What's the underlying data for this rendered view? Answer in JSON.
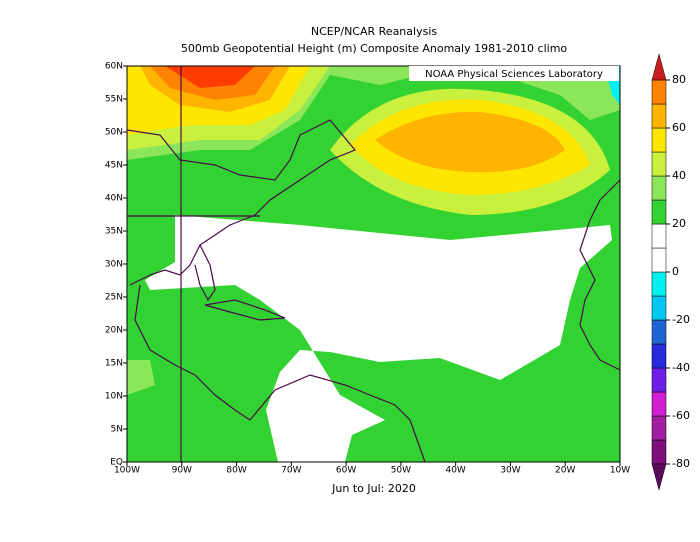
{
  "title": "NCEP/NCAR Reanalysis",
  "subtitle": "500mb Geopotential Height (m) Composite Anomaly 1981-2010 climo",
  "credit": "NOAA Physical Sciences Laboratory",
  "footer": "Jun to Jul: 2020",
  "map": {
    "xlim": [
      -100,
      -10
    ],
    "ylim": [
      0,
      60
    ],
    "xticks": [
      {
        "value": -100,
        "label": "100W"
      },
      {
        "value": -90,
        "label": "90W"
      },
      {
        "value": -80,
        "label": "80W"
      },
      {
        "value": -70,
        "label": "70W"
      },
      {
        "value": -60,
        "label": "60W"
      },
      {
        "value": -50,
        "label": "50W"
      },
      {
        "value": -40,
        "label": "40W"
      },
      {
        "value": -30,
        "label": "30W"
      },
      {
        "value": -20,
        "label": "20W"
      },
      {
        "value": -10,
        "label": "10W"
      }
    ],
    "yticks": [
      {
        "value": 0,
        "label": "EQ"
      },
      {
        "value": 5,
        "label": "5N"
      },
      {
        "value": 10,
        "label": "10N"
      },
      {
        "value": 15,
        "label": "15N"
      },
      {
        "value": 20,
        "label": "20N"
      },
      {
        "value": 25,
        "label": "25N"
      },
      {
        "value": 30,
        "label": "30N"
      },
      {
        "value": 35,
        "label": "35N"
      },
      {
        "value": 40,
        "label": "40N"
      },
      {
        "value": 45,
        "label": "45N"
      },
      {
        "value": 50,
        "label": "50N"
      },
      {
        "value": 55,
        "label": "55N"
      },
      {
        "value": 60,
        "label": "60N"
      }
    ]
  },
  "colorbar": {
    "clim": [
      -80,
      80
    ],
    "ticks": [
      80,
      60,
      40,
      20,
      0,
      -20,
      -40,
      -60,
      -80
    ],
    "under": "#5a0a5a",
    "over": "#c81e1e",
    "colors": [
      "#7d0f7d",
      "#a01ea0",
      "#d21ed2",
      "#6e1ee6",
      "#2828dc",
      "#1e64d2",
      "#00c8f0",
      "#00f0f0",
      "#ffffff",
      "#ffffff",
      "#32d232",
      "#8ce65a",
      "#c8f03c",
      "#ffe600",
      "#ffb400",
      "#ff8200"
    ]
  }
}
